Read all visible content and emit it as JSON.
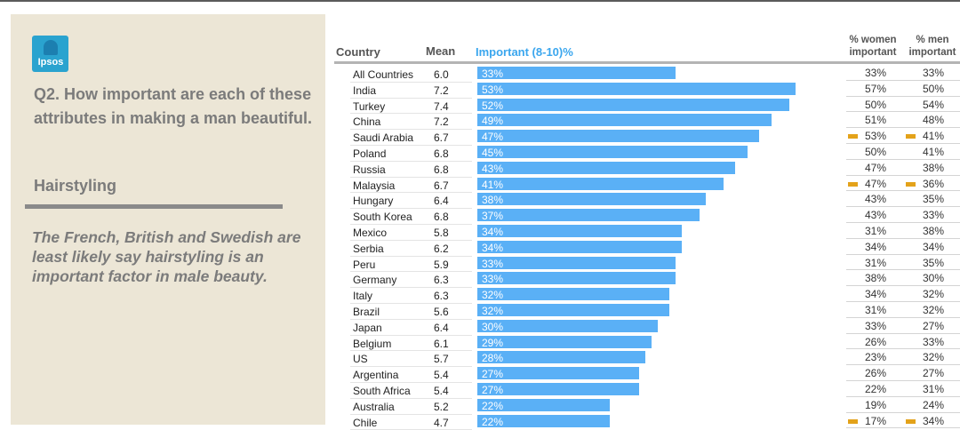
{
  "logo": {
    "text": "Ipsos",
    "color": "#2aa3cf"
  },
  "panel": {
    "question": "Q2. How important are each of these attributes in making a man beautiful.",
    "subtitle": "Hairstyling",
    "insight": "The French, British and Swedish are least likely say hairstyling is an important factor in male beauty."
  },
  "table": {
    "headers": {
      "country": "Country",
      "mean": "Mean",
      "important": "Important (8-10)%",
      "women_line1": "% women",
      "women_line2": "important",
      "men_line1": "% men",
      "men_line2": "important"
    },
    "bar_color": "#5ab0f6",
    "flag_color": "#e3a21a"
  },
  "chart_data": {
    "type": "bar",
    "orientation": "horizontal",
    "title": "Hairstyling",
    "xlim": [
      0,
      60
    ],
    "categories": [
      "All Countries",
      "India",
      "Turkey",
      "China",
      "Saudi Arabia",
      "Poland",
      "Russia",
      "Malaysia",
      "Hungary",
      "South Korea",
      "Mexico",
      "Serbia",
      "Peru",
      "Germany",
      "Italy",
      "Brazil",
      "Japan",
      "Belgium",
      "US",
      "Argentina",
      "South Africa",
      "Australia",
      "Chile"
    ],
    "mean": [
      "6.0",
      "7.2",
      "7.4",
      "7.2",
      "6.7",
      "6.8",
      "6.8",
      "6.7",
      "6.4",
      "6.8",
      "5.8",
      "6.2",
      "5.9",
      "6.3",
      "6.3",
      "5.6",
      "6.4",
      "6.1",
      "5.7",
      "5.4",
      "5.4",
      "5.2",
      "4.7"
    ],
    "series": [
      {
        "name": "Important (8-10)%",
        "values": [
          33,
          53,
          52,
          49,
          47,
          45,
          43,
          41,
          38,
          37,
          34,
          34,
          33,
          33,
          32,
          32,
          30,
          29,
          28,
          27,
          27,
          22,
          22
        ]
      }
    ],
    "women_important": [
      33,
      57,
      50,
      51,
      53,
      50,
      47,
      47,
      43,
      43,
      31,
      34,
      31,
      38,
      34,
      31,
      33,
      26,
      23,
      26,
      22,
      19,
      17
    ],
    "men_important": [
      33,
      50,
      54,
      48,
      41,
      41,
      38,
      36,
      35,
      33,
      38,
      34,
      35,
      30,
      32,
      32,
      27,
      33,
      32,
      27,
      31,
      24,
      34
    ],
    "flagged_rows": [
      4,
      7,
      22
    ]
  }
}
